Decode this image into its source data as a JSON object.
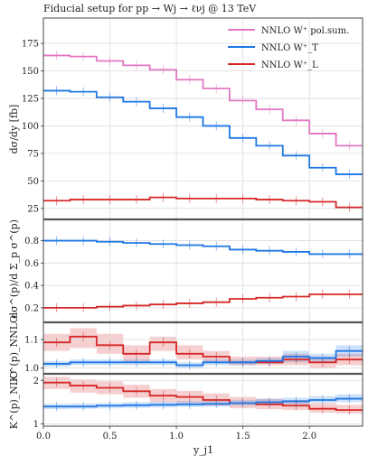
{
  "chart_data": {
    "type": "line",
    "title": "Fiducial setup for pp → Wj → ℓνj @ 13 TeV",
    "xlabel": "y_j1",
    "x_edges": [
      0.0,
      0.2,
      0.4,
      0.6,
      0.8,
      1.0,
      1.2,
      1.4,
      1.6,
      1.8,
      2.0,
      2.2,
      2.4
    ],
    "x_ticks": [
      "0.0",
      "0.5",
      "1.0",
      "1.5",
      "2.0"
    ],
    "x_tick_values": [
      0.0,
      0.5,
      1.0,
      1.5,
      2.0
    ],
    "xlim": [
      0.0,
      2.4
    ],
    "grid": true,
    "legend_position": "top-right",
    "colors": {
      "pol_sum": "#e377c2",
      "transverse": "#1f77e4",
      "longitudinal": "#d62728"
    },
    "panels": [
      {
        "ylabel": "dσ/dy [fb]",
        "ylim": [
          15,
          198
        ],
        "y_ticks": [
          "25",
          "50",
          "75",
          "100",
          "125",
          "150",
          "175"
        ],
        "y_tick_values": [
          25,
          50,
          75,
          100,
          125,
          150,
          175
        ],
        "series": [
          {
            "name": "NNLO W⁺ pol.sum.",
            "color_key": "pol_sum",
            "values": [
              164,
              163,
              159,
              155,
              151,
              142,
              134,
              123,
              115,
              105,
              93,
              82
            ]
          },
          {
            "name": "NNLO W⁺_T",
            "color_key": "transverse",
            "values": [
              132,
              131,
              126,
              122,
              116,
              108,
              100,
              89,
              82,
              73,
              62,
              56
            ]
          },
          {
            "name": "NNLO W⁺_L",
            "color_key": "longitudinal",
            "values": [
              32,
              33,
              33,
              33,
              35,
              34,
              34,
              34,
              33,
              32,
              31,
              26
            ]
          }
        ]
      },
      {
        "ylabel": "dσ^(p)/d Σ_p σ^(p)",
        "ylim": [
          0.07,
          0.99
        ],
        "y_ticks": [
          "0.2",
          "0.4",
          "0.6",
          "0.8"
        ],
        "y_tick_values": [
          0.2,
          0.4,
          0.6,
          0.8
        ],
        "series": [
          {
            "color_key": "transverse",
            "values": [
              0.8,
              0.8,
              0.79,
              0.78,
              0.77,
              0.76,
              0.75,
              0.72,
              0.71,
              0.7,
              0.68,
              0.68
            ]
          },
          {
            "color_key": "longitudinal",
            "values": [
              0.2,
              0.2,
              0.21,
              0.22,
              0.23,
              0.24,
              0.25,
              0.28,
              0.29,
              0.3,
              0.32,
              0.32
            ]
          }
        ]
      },
      {
        "ylabel": "K^(p)_NNLO",
        "ylim": [
          0.98,
          1.16
        ],
        "y_ticks": [
          "1.0",
          "1.1"
        ],
        "y_tick_values": [
          1.0,
          1.1
        ],
        "series": [
          {
            "color_key": "longitudinal",
            "values": [
              1.09,
              1.11,
              1.08,
              1.05,
              1.09,
              1.05,
              1.04,
              1.02,
              1.02,
              1.03,
              1.02,
              1.03
            ],
            "band_low": [
              1.06,
              1.07,
              1.05,
              1.02,
              1.06,
              1.03,
              1.02,
              1.01,
              1.01,
              1.01,
              1.0,
              1.01
            ],
            "band_high": [
              1.12,
              1.14,
              1.12,
              1.08,
              1.11,
              1.08,
              1.06,
              1.04,
              1.04,
              1.05,
              1.04,
              1.05
            ]
          },
          {
            "color_key": "transverse",
            "values": [
              1.015,
              1.02,
              1.02,
              1.02,
              1.02,
              1.01,
              1.02,
              1.02,
              1.025,
              1.04,
              1.035,
              1.06
            ],
            "band_low": [
              1.005,
              1.01,
              1.01,
              1.01,
              1.01,
              1.0,
              1.01,
              1.01,
              1.015,
              1.02,
              1.02,
              1.04
            ],
            "band_high": [
              1.025,
              1.03,
              1.03,
              1.03,
              1.03,
              1.02,
              1.03,
              1.03,
              1.035,
              1.06,
              1.05,
              1.08
            ]
          }
        ]
      },
      {
        "ylabel": "K^(p)_NLO",
        "ylim": [
          0.95,
          2.15
        ],
        "y_ticks": [
          "1",
          "2"
        ],
        "y_tick_values": [
          1,
          2
        ],
        "series": [
          {
            "color_key": "longitudinal",
            "values": [
              1.95,
              1.88,
              1.83,
              1.75,
              1.65,
              1.62,
              1.55,
              1.48,
              1.45,
              1.42,
              1.35,
              1.32
            ],
            "band_low": [
              1.8,
              1.72,
              1.68,
              1.6,
              1.5,
              1.48,
              1.42,
              1.36,
              1.34,
              1.32,
              1.26,
              1.24
            ],
            "band_high": [
              2.08,
              2.02,
              1.98,
              1.9,
              1.8,
              1.76,
              1.7,
              1.62,
              1.58,
              1.55,
              1.47,
              1.44
            ]
          },
          {
            "color_key": "transverse",
            "values": [
              1.4,
              1.4,
              1.42,
              1.43,
              1.44,
              1.45,
              1.46,
              1.48,
              1.5,
              1.52,
              1.55,
              1.58
            ],
            "band_low": [
              1.34,
              1.35,
              1.36,
              1.37,
              1.38,
              1.39,
              1.4,
              1.42,
              1.43,
              1.45,
              1.48,
              1.5
            ],
            "band_high": [
              1.46,
              1.47,
              1.48,
              1.5,
              1.51,
              1.52,
              1.53,
              1.55,
              1.58,
              1.6,
              1.64,
              1.68
            ]
          }
        ]
      }
    ]
  }
}
